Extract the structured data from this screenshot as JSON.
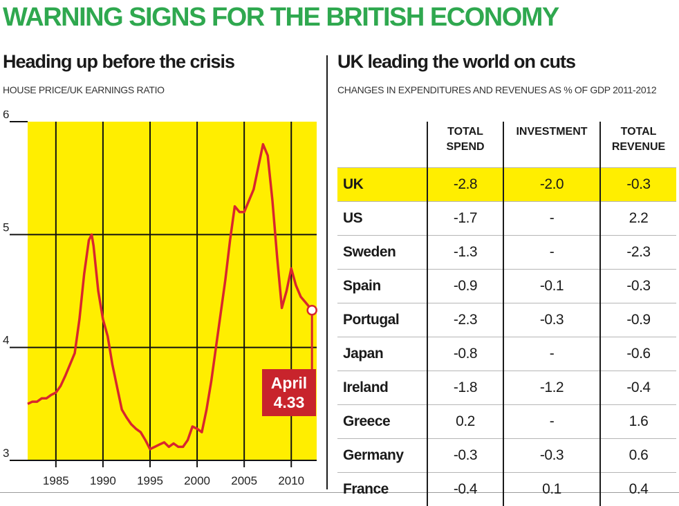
{
  "headline": "WARNING SIGNS FOR THE BRITISH ECONOMY",
  "left_panel": {
    "title": "Heading up before the crisis",
    "caption": "HOUSE PRICE/UK EARNINGS RATIO"
  },
  "right_panel": {
    "title": "UK leading the world on cuts",
    "caption": "CHANGES IN EXPENDITURES AND REVENUES AS % OF GDP 2011-2012"
  },
  "colors": {
    "headline": "#2fa84f",
    "plot_background": "#ffee00",
    "line": "#d8262e",
    "callout_background": "#c8242c",
    "row_highlight": "#ffee00"
  },
  "chart_data": [
    {
      "type": "line",
      "title": "Heading up before the crisis",
      "ylabel": "HOUSE PRICE/UK EARNINGS RATIO",
      "xlim": [
        1982,
        2012.7
      ],
      "ylim": [
        3,
        6
      ],
      "x_ticks": [
        1985,
        1990,
        1995,
        2000,
        2005,
        2010
      ],
      "y_ticks": [
        3,
        4,
        5,
        6
      ],
      "grid": true,
      "series": [
        {
          "points": [
            [
              1982.0,
              3.5
            ],
            [
              1982.5,
              3.52
            ],
            [
              1983.0,
              3.52
            ],
            [
              1983.5,
              3.55
            ],
            [
              1984.0,
              3.55
            ],
            [
              1984.5,
              3.58
            ],
            [
              1985.0,
              3.6
            ],
            [
              1985.5,
              3.66
            ],
            [
              1986.0,
              3.75
            ],
            [
              1986.5,
              3.85
            ],
            [
              1987.0,
              3.95
            ],
            [
              1987.5,
              4.25
            ],
            [
              1988.0,
              4.65
            ],
            [
              1988.5,
              4.95
            ],
            [
              1988.8,
              5.0
            ],
            [
              1989.0,
              4.9
            ],
            [
              1989.5,
              4.5
            ],
            [
              1990.0,
              4.25
            ],
            [
              1990.5,
              4.1
            ],
            [
              1991.0,
              3.85
            ],
            [
              1991.5,
              3.65
            ],
            [
              1992.0,
              3.45
            ],
            [
              1992.5,
              3.38
            ],
            [
              1993.0,
              3.32
            ],
            [
              1993.5,
              3.28
            ],
            [
              1994.0,
              3.25
            ],
            [
              1994.5,
              3.18
            ],
            [
              1995.0,
              3.1
            ],
            [
              1995.5,
              3.12
            ],
            [
              1996.0,
              3.14
            ],
            [
              1996.5,
              3.16
            ],
            [
              1997.0,
              3.12
            ],
            [
              1997.5,
              3.15
            ],
            [
              1998.0,
              3.12
            ],
            [
              1998.5,
              3.12
            ],
            [
              1999.0,
              3.18
            ],
            [
              1999.5,
              3.3
            ],
            [
              2000.0,
              3.28
            ],
            [
              2000.5,
              3.25
            ],
            [
              2001.0,
              3.45
            ],
            [
              2001.5,
              3.7
            ],
            [
              2002.0,
              4.0
            ],
            [
              2002.5,
              4.3
            ],
            [
              2003.0,
              4.6
            ],
            [
              2003.5,
              4.95
            ],
            [
              2004.0,
              5.25
            ],
            [
              2004.5,
              5.2
            ],
            [
              2005.0,
              5.2
            ],
            [
              2005.5,
              5.3
            ],
            [
              2006.0,
              5.4
            ],
            [
              2006.5,
              5.6
            ],
            [
              2007.0,
              5.8
            ],
            [
              2007.5,
              5.7
            ],
            [
              2008.0,
              5.3
            ],
            [
              2008.5,
              4.8
            ],
            [
              2009.0,
              4.35
            ],
            [
              2009.5,
              4.5
            ],
            [
              2010.0,
              4.7
            ],
            [
              2010.5,
              4.55
            ],
            [
              2011.0,
              4.45
            ],
            [
              2011.5,
              4.4
            ],
            [
              2012.2,
              4.33
            ]
          ]
        }
      ],
      "annotations": [
        {
          "label": "April",
          "value": "4.33",
          "x": 2012.2,
          "y": 4.33
        }
      ]
    },
    {
      "type": "table",
      "title": "UK leading the world on cuts",
      "columns": [
        "TOTAL SPEND",
        "INVESTMENT",
        "TOTAL REVENUE"
      ],
      "rows": [
        {
          "country": "UK",
          "total_spend": "-2.8",
          "investment": "-2.0",
          "total_revenue": "-0.3",
          "highlight": true
        },
        {
          "country": "US",
          "total_spend": "-1.7",
          "investment": "-",
          "total_revenue": "2.2"
        },
        {
          "country": "Sweden",
          "total_spend": "-1.3",
          "investment": "-",
          "total_revenue": "-2.3"
        },
        {
          "country": "Spain",
          "total_spend": "-0.9",
          "investment": "-0.1",
          "total_revenue": "-0.3"
        },
        {
          "country": "Portugal",
          "total_spend": "-2.3",
          "investment": "-0.3",
          "total_revenue": "-0.9"
        },
        {
          "country": "Japan",
          "total_spend": "-0.8",
          "investment": "-",
          "total_revenue": "-0.6"
        },
        {
          "country": "Ireland",
          "total_spend": "-1.8",
          "investment": "-1.2",
          "total_revenue": "-0.4"
        },
        {
          "country": "Greece",
          "total_spend": "0.2",
          "investment": "-",
          "total_revenue": "1.6"
        },
        {
          "country": "Germany",
          "total_spend": "-0.3",
          "investment": "-0.3",
          "total_revenue": "0.6"
        },
        {
          "country": "France",
          "total_spend": "-0.4",
          "investment": "0.1",
          "total_revenue": "0.4"
        }
      ]
    }
  ]
}
